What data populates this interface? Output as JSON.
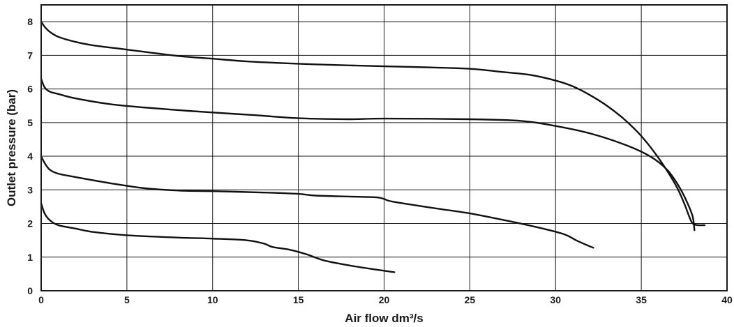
{
  "chart_data": {
    "type": "line",
    "xlabel": "Air flow dm³/s",
    "ylabel": "Outlet pressure (bar)",
    "xlim": [
      0,
      40
    ],
    "ylim": [
      0,
      8.5
    ],
    "x_ticks": [
      0,
      5,
      10,
      15,
      20,
      25,
      30,
      35,
      40
    ],
    "y_ticks": [
      0,
      1,
      2,
      3,
      4,
      5,
      6,
      7,
      8
    ],
    "grid": true,
    "series": [
      {
        "points": [
          [
            0,
            8.0
          ],
          [
            0.2,
            7.85
          ],
          [
            0.5,
            7.7
          ],
          [
            1,
            7.55
          ],
          [
            2,
            7.4
          ],
          [
            3,
            7.3
          ],
          [
            5,
            7.17
          ],
          [
            8,
            6.98
          ],
          [
            10,
            6.9
          ],
          [
            12,
            6.82
          ],
          [
            15,
            6.75
          ],
          [
            18,
            6.7
          ],
          [
            22,
            6.65
          ],
          [
            25,
            6.6
          ],
          [
            27,
            6.5
          ],
          [
            28.5,
            6.42
          ],
          [
            30,
            6.25
          ],
          [
            31,
            6.08
          ],
          [
            32,
            5.82
          ],
          [
            33,
            5.5
          ],
          [
            34,
            5.1
          ],
          [
            35,
            4.6
          ],
          [
            36,
            3.95
          ],
          [
            37,
            3.15
          ],
          [
            37.5,
            2.6
          ],
          [
            37.8,
            2.2
          ],
          [
            38,
            2.0
          ],
          [
            38.3,
            1.95
          ],
          [
            38.7,
            1.95
          ]
        ]
      },
      {
        "points": [
          [
            0,
            6.3
          ],
          [
            0.2,
            6.05
          ],
          [
            0.5,
            5.92
          ],
          [
            1,
            5.85
          ],
          [
            2,
            5.72
          ],
          [
            4,
            5.55
          ],
          [
            6,
            5.45
          ],
          [
            8,
            5.37
          ],
          [
            10,
            5.3
          ],
          [
            12.5,
            5.22
          ],
          [
            13,
            5.2
          ],
          [
            15,
            5.13
          ],
          [
            18,
            5.1
          ],
          [
            20,
            5.12
          ],
          [
            25,
            5.1
          ],
          [
            28,
            5.05
          ],
          [
            30,
            4.9
          ],
          [
            32,
            4.68
          ],
          [
            34,
            4.35
          ],
          [
            35.5,
            4.0
          ],
          [
            36.5,
            3.6
          ],
          [
            37.2,
            3.1
          ],
          [
            37.7,
            2.6
          ],
          [
            38,
            2.2
          ],
          [
            38.1,
            1.8
          ]
        ]
      },
      {
        "points": [
          [
            0,
            4.0
          ],
          [
            0.2,
            3.8
          ],
          [
            0.5,
            3.6
          ],
          [
            1,
            3.48
          ],
          [
            2,
            3.38
          ],
          [
            4,
            3.2
          ],
          [
            6,
            3.05
          ],
          [
            8,
            2.98
          ],
          [
            10,
            2.96
          ],
          [
            13,
            2.92
          ],
          [
            15,
            2.88
          ],
          [
            16,
            2.83
          ],
          [
            18,
            2.8
          ],
          [
            19.5,
            2.78
          ],
          [
            20,
            2.73
          ],
          [
            20.5,
            2.65
          ],
          [
            23,
            2.45
          ],
          [
            25,
            2.3
          ],
          [
            27,
            2.1
          ],
          [
            29,
            1.88
          ],
          [
            30.5,
            1.68
          ],
          [
            31.2,
            1.5
          ],
          [
            32,
            1.32
          ],
          [
            32.2,
            1.28
          ]
        ]
      },
      {
        "points": [
          [
            0,
            2.6
          ],
          [
            0.2,
            2.3
          ],
          [
            0.5,
            2.1
          ],
          [
            1,
            1.95
          ],
          [
            2,
            1.85
          ],
          [
            3,
            1.75
          ],
          [
            5,
            1.65
          ],
          [
            8,
            1.58
          ],
          [
            10,
            1.55
          ],
          [
            12,
            1.5
          ],
          [
            13,
            1.4
          ],
          [
            13.5,
            1.3
          ],
          [
            14.5,
            1.22
          ],
          [
            15.5,
            1.08
          ],
          [
            16.5,
            0.9
          ],
          [
            18,
            0.75
          ],
          [
            19.5,
            0.63
          ],
          [
            20.6,
            0.55
          ]
        ]
      }
    ]
  }
}
